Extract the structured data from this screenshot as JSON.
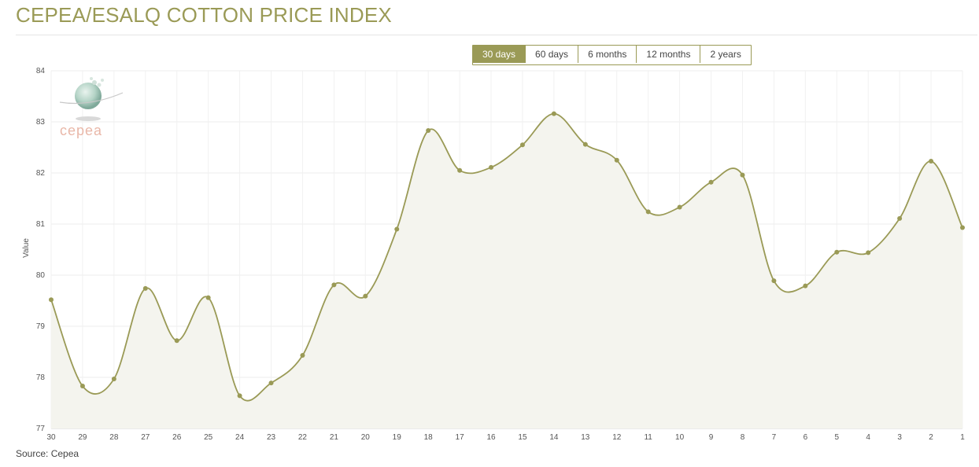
{
  "header": {
    "title": "CEPEA/ESALQ COTTON PRICE INDEX"
  },
  "range_selector": {
    "buttons": [
      "30 days",
      "60 days",
      "6 months",
      "12 months",
      "2 years"
    ],
    "active": "30 days"
  },
  "logo": {
    "text": "cepea"
  },
  "footer": {
    "source": "Source: Cepea"
  },
  "colors": {
    "accent": "#9a9a56",
    "line": "#9a9a56",
    "fill": "#f4f4ee",
    "grid": "#ececec"
  },
  "chart_data": {
    "type": "area",
    "categories": [
      "30",
      "29",
      "28",
      "27",
      "26",
      "25",
      "24",
      "23",
      "22",
      "21",
      "20",
      "19",
      "18",
      "17",
      "16",
      "15",
      "14",
      "13",
      "12",
      "11",
      "10",
      "9",
      "8",
      "7",
      "6",
      "5",
      "4",
      "3",
      "2",
      "1"
    ],
    "series": [
      {
        "values": [
          79.52,
          77.83,
          77.97,
          79.74,
          78.72,
          79.56,
          77.64,
          77.89,
          78.43,
          79.81,
          79.59,
          80.9,
          82.83,
          82.05,
          82.11,
          82.55,
          83.16,
          82.56,
          82.25,
          81.24,
          81.33,
          81.82,
          81.96,
          79.89,
          79.79,
          80.45,
          80.44,
          81.11,
          82.23,
          80.93
        ]
      }
    ],
    "title": "CEPEA/ESALQ COTTON PRICE INDEX",
    "xlabel": "",
    "ylabel": "Value",
    "ylim": [
      77,
      84
    ],
    "yticks": [
      77,
      78,
      79,
      80,
      81,
      82,
      83,
      84
    ],
    "grid": true,
    "legend": "none"
  }
}
